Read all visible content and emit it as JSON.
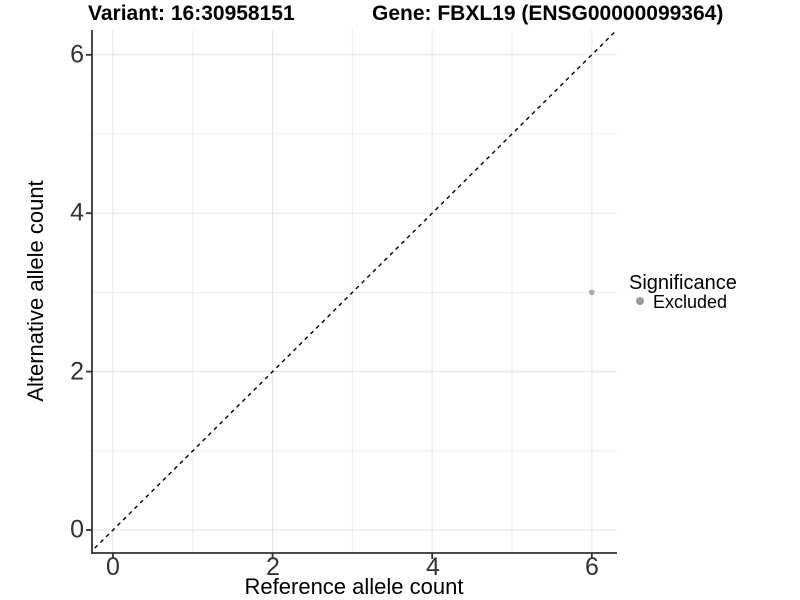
{
  "chart_data": {
    "type": "scatter",
    "title_left": "Variant: 16:30958151",
    "title_right": "Gene: FBXL19 (ENSG00000099364)",
    "xlabel": "Reference allele count",
    "ylabel": "Alternative allele count",
    "x_ticks": [
      0,
      2,
      4,
      6
    ],
    "y_ticks": [
      0,
      2,
      4,
      6
    ],
    "x_minor": [
      1,
      3,
      5
    ],
    "y_minor": [
      1,
      3,
      5
    ],
    "xlim": [
      -0.3,
      6.32
    ],
    "ylim": [
      -0.3,
      6.32
    ],
    "grid": "on",
    "legend": {
      "title": "Significance",
      "position": "right",
      "entries": [
        {
          "label": "Excluded",
          "color": "#9b9b9b"
        }
      ]
    },
    "series": [
      {
        "name": "Excluded",
        "color": "#a9a9a9",
        "points": [
          [
            6,
            3
          ]
        ]
      }
    ],
    "annotations": [
      {
        "type": "identity-line",
        "description": "y = x dashed reference line",
        "style": "dashed",
        "color": "#000000"
      }
    ]
  },
  "colors": {
    "background": "#ffffff",
    "grid_major": "#e3e3e3",
    "grid_minor": "#ededed",
    "axis": "#333333",
    "title_text": "#000000",
    "tick_text": "#333333"
  }
}
